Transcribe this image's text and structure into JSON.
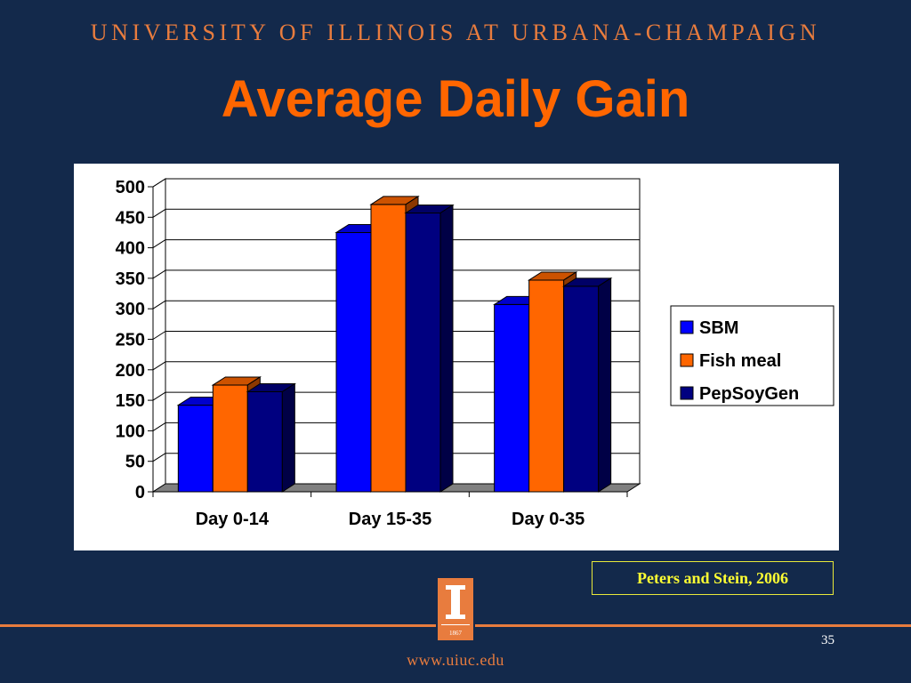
{
  "header": {
    "university": "UNIVERSITY OF ILLINOIS AT URBANA-CHAMPAIGN",
    "title": "Average Daily Gain"
  },
  "chart_data": {
    "type": "bar",
    "title": "",
    "xlabel": "",
    "ylabel": "",
    "categories": [
      "Day 0-14",
      "Day 15-35",
      "Day 0-35"
    ],
    "series": [
      {
        "name": "SBM",
        "color": "#0000ff",
        "values": [
          142,
          425,
          307
        ]
      },
      {
        "name": "Fish meal",
        "color": "#ff6600",
        "values": [
          175,
          471,
          347
        ]
      },
      {
        "name": "PepSoyGen",
        "color": "#000080",
        "values": [
          164,
          457,
          337
        ]
      }
    ],
    "ylim": [
      0,
      500
    ],
    "yticks": [
      0,
      50,
      100,
      150,
      200,
      250,
      300,
      350,
      400,
      450,
      500
    ],
    "grid": true,
    "legend_position": "right",
    "style": "3d-clustered"
  },
  "footer": {
    "citation": "Peters and Stein, 2006",
    "logo_year": "1867",
    "page_number": "35",
    "url": "www.uiuc.edu"
  },
  "colors": {
    "background": "#13294b",
    "accent": "#e87c3e",
    "title": "#ff6600",
    "citation": "#ffff33"
  }
}
